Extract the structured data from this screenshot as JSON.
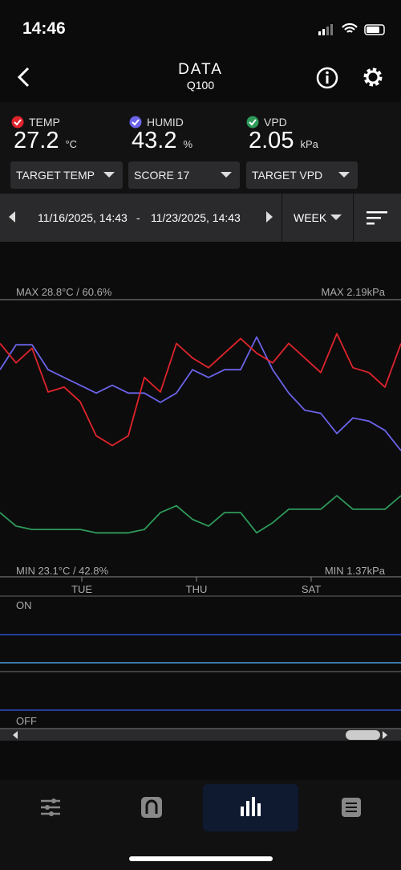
{
  "status": {
    "time": "14:46"
  },
  "header": {
    "title": "DATA",
    "subtitle": "Q100"
  },
  "readings": [
    {
      "name": "TEMP",
      "value": "27.2",
      "unit": "°C",
      "color": "#e0242c"
    },
    {
      "name": "HUMID",
      "value": "43.2",
      "unit": "%",
      "color": "#6b63e8"
    },
    {
      "name": "VPD",
      "value": "2.05",
      "unit": "kPa",
      "color": "#2e9a5a"
    }
  ],
  "dropdowns": [
    "TARGET TEMP",
    "SCORE 17",
    "TARGET VPD"
  ],
  "range": {
    "start": "11/16/2025, 14:43",
    "separator": "-",
    "end": "11/23/2025, 14:43",
    "period": "WEEK"
  },
  "chart": {
    "max_left": "MAX 28.8°C / 60.6%",
    "max_right": "MAX 2.19kPa",
    "min_left": "MIN 23.1°C / 42.8%",
    "min_right": "MIN 1.37kPa",
    "days": [
      "TUE",
      "THU",
      "SAT"
    ],
    "series": [
      {
        "name": "TEMP",
        "color": "#e0242c",
        "ylim": [
          23.1,
          28.8
        ],
        "values": [
          27.9,
          27.5,
          27.8,
          26.9,
          27.0,
          26.7,
          26.0,
          25.8,
          26.0,
          27.2,
          26.9,
          27.9,
          27.6,
          27.4,
          27.7,
          28.0,
          27.7,
          27.5,
          27.9,
          27.6,
          27.3,
          28.1,
          27.4,
          27.3,
          27.0,
          27.9
        ]
      },
      {
        "name": "HUMID",
        "color": "#6b63e8",
        "ylim": [
          42.8,
          60.6
        ],
        "values": [
          56.1,
          57.7,
          57.7,
          56.1,
          55.6,
          55.1,
          54.6,
          55.1,
          54.6,
          54.6,
          54.0,
          54.6,
          56.1,
          55.6,
          56.1,
          56.1,
          58.2,
          56.1,
          54.6,
          53.5,
          53.3,
          52.0,
          53.0,
          52.8,
          52.2,
          50.9
        ]
      },
      {
        "name": "VPD",
        "color": "#2e9a5a",
        "ylim": [
          1.37,
          2.19
        ],
        "values": [
          1.56,
          1.52,
          1.51,
          1.51,
          1.51,
          1.51,
          1.5,
          1.5,
          1.5,
          1.51,
          1.56,
          1.58,
          1.54,
          1.52,
          1.56,
          1.56,
          1.5,
          1.53,
          1.57,
          1.57,
          1.57,
          1.61,
          1.57,
          1.57,
          1.57,
          1.61
        ]
      }
    ]
  },
  "switch": {
    "on": "ON",
    "off": "OFF"
  }
}
